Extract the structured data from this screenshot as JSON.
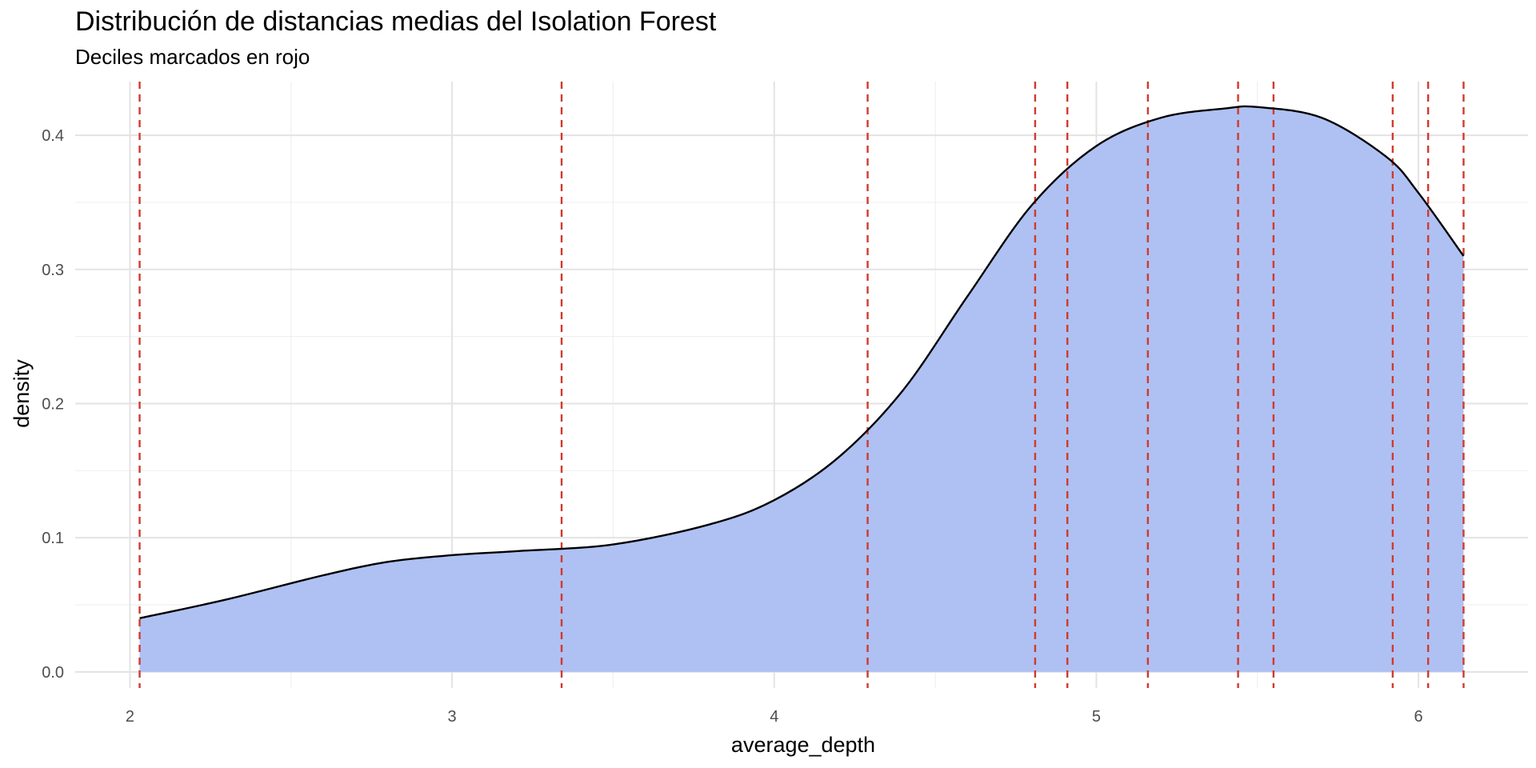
{
  "chart_data": {
    "type": "area",
    "title": "Distribución de distancias medias del Isolation Forest",
    "subtitle": "Deciles marcados en rojo",
    "xlabel": "average_depth",
    "ylabel": "density",
    "xlim": [
      1.83,
      6.34
    ],
    "ylim": [
      -0.012,
      0.44
    ],
    "x_ticks": [
      2,
      3,
      4,
      5,
      6
    ],
    "y_ticks": [
      0.0,
      0.1,
      0.2,
      0.3,
      0.4
    ],
    "x_tick_labels": [
      "2",
      "3",
      "4",
      "5",
      "6"
    ],
    "y_tick_labels": [
      "0.0",
      "0.1",
      "0.2",
      "0.3",
      "0.4"
    ],
    "grid": true,
    "fill_color": "#adc0f3",
    "line_color": "#000000",
    "decile_color": "#d03a2e",
    "density": {
      "x": [
        2.03,
        2.3,
        2.6,
        2.8,
        3.0,
        3.2,
        3.5,
        3.8,
        4.0,
        4.2,
        4.4,
        4.6,
        4.8,
        5.0,
        5.2,
        5.4,
        5.5,
        5.7,
        5.9,
        6.0,
        6.14
      ],
      "y": [
        0.04,
        0.054,
        0.072,
        0.082,
        0.087,
        0.09,
        0.095,
        0.11,
        0.128,
        0.16,
        0.21,
        0.28,
        0.348,
        0.392,
        0.413,
        0.42,
        0.421,
        0.413,
        0.384,
        0.357,
        0.31
      ]
    },
    "deciles": [
      2.03,
      3.34,
      4.29,
      4.81,
      4.91,
      5.16,
      5.44,
      5.55,
      5.92,
      6.03,
      6.14
    ]
  }
}
